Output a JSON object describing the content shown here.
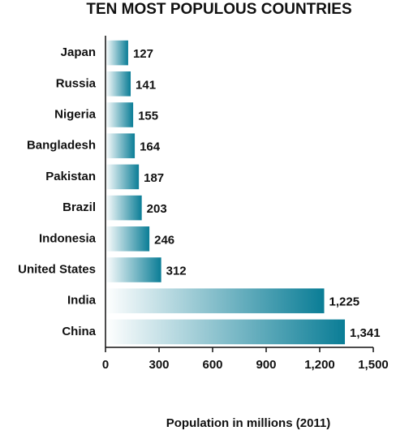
{
  "chart_data": {
    "type": "bar",
    "orientation": "horizontal",
    "title": "TEN MOST POPULOUS COUNTRIES",
    "x_label": "Population in millions (2011)",
    "categories": [
      "Japan",
      "Russia",
      "Nigeria",
      "Bangladesh",
      "Pakistan",
      "Brazil",
      "Indonesia",
      "United States",
      "India",
      "China"
    ],
    "values": [
      127,
      141,
      155,
      164,
      187,
      203,
      246,
      312,
      1225,
      1341
    ],
    "value_labels": [
      "127",
      "141",
      "155",
      "164",
      "187",
      "203",
      "246",
      "312",
      "1,225",
      "1,341"
    ],
    "color": "#0a7d96",
    "xlim": [
      0,
      1500
    ],
    "xticks": [
      0,
      300,
      600,
      900,
      {
        "value": 1200,
        "label": "1,200"
      },
      {
        "value": 1500,
        "label": "1,500"
      }
    ],
    "grid": false
  }
}
